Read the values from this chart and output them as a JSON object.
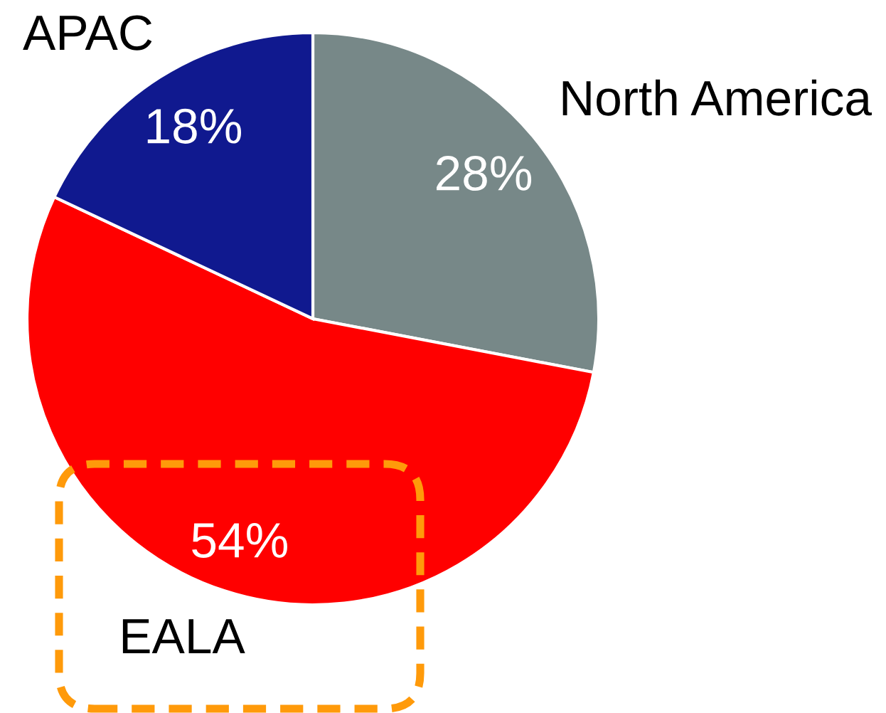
{
  "chart_data": {
    "type": "pie",
    "categories": [
      "North America",
      "EALA",
      "APAC"
    ],
    "values": [
      28,
      54,
      18
    ],
    "colors": [
      "#778888",
      "#ff0000",
      "#10198f"
    ],
    "value_labels": [
      "28%",
      "54%",
      "18%"
    ]
  }
}
